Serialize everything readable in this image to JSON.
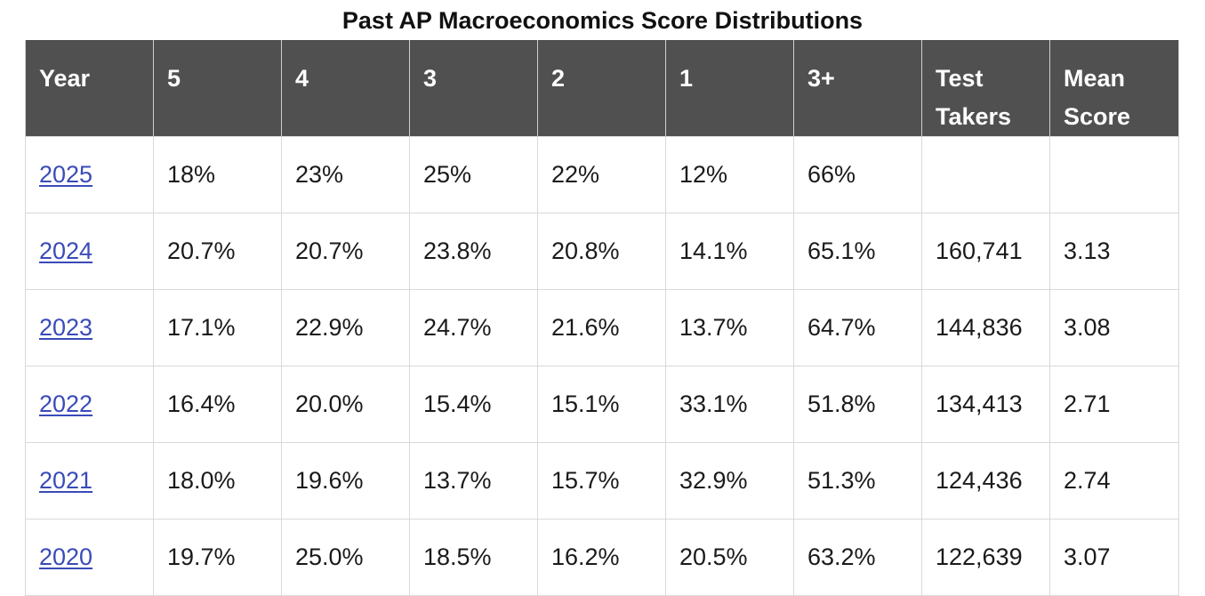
{
  "title": "Past AP Macroeconomics Score Distributions",
  "table": {
    "headers": [
      "Year",
      "5",
      "4",
      "3",
      "2",
      "1",
      "3+",
      "Test Takers",
      "Mean Score"
    ],
    "rows": [
      {
        "year": "2025",
        "s5": "18%",
        "s4": "23%",
        "s3": "25%",
        "s2": "22%",
        "s1": "12%",
        "s3plus": "66%",
        "takers": "",
        "mean": ""
      },
      {
        "year": "2024",
        "s5": "20.7%",
        "s4": "20.7%",
        "s3": "23.8%",
        "s2": "20.8%",
        "s1": "14.1%",
        "s3plus": "65.1%",
        "takers": "160,741",
        "mean": "3.13"
      },
      {
        "year": "2023",
        "s5": "17.1%",
        "s4": "22.9%",
        "s3": "24.7%",
        "s2": "21.6%",
        "s1": "13.7%",
        "s3plus": "64.7%",
        "takers": "144,836",
        "mean": "3.08"
      },
      {
        "year": "2022",
        "s5": "16.4%",
        "s4": "20.0%",
        "s3": "15.4%",
        "s2": "15.1%",
        "s1": "33.1%",
        "s3plus": "51.8%",
        "takers": "134,413",
        "mean": "2.71"
      },
      {
        "year": "2021",
        "s5": "18.0%",
        "s4": "19.6%",
        "s3": "13.7%",
        "s2": "15.7%",
        "s1": "32.9%",
        "s3plus": "51.3%",
        "takers": "124,436",
        "mean": "2.74"
      },
      {
        "year": "2020",
        "s5": "19.7%",
        "s4": "25.0%",
        "s3": "18.5%",
        "s2": "16.2%",
        "s1": "20.5%",
        "s3plus": "63.2%",
        "takers": "122,639",
        "mean": "3.07"
      }
    ]
  },
  "colors": {
    "header_bg": "#505050",
    "header_text": "#ffffff",
    "link": "#3a4bb8",
    "grid": "#d9d9d9"
  }
}
